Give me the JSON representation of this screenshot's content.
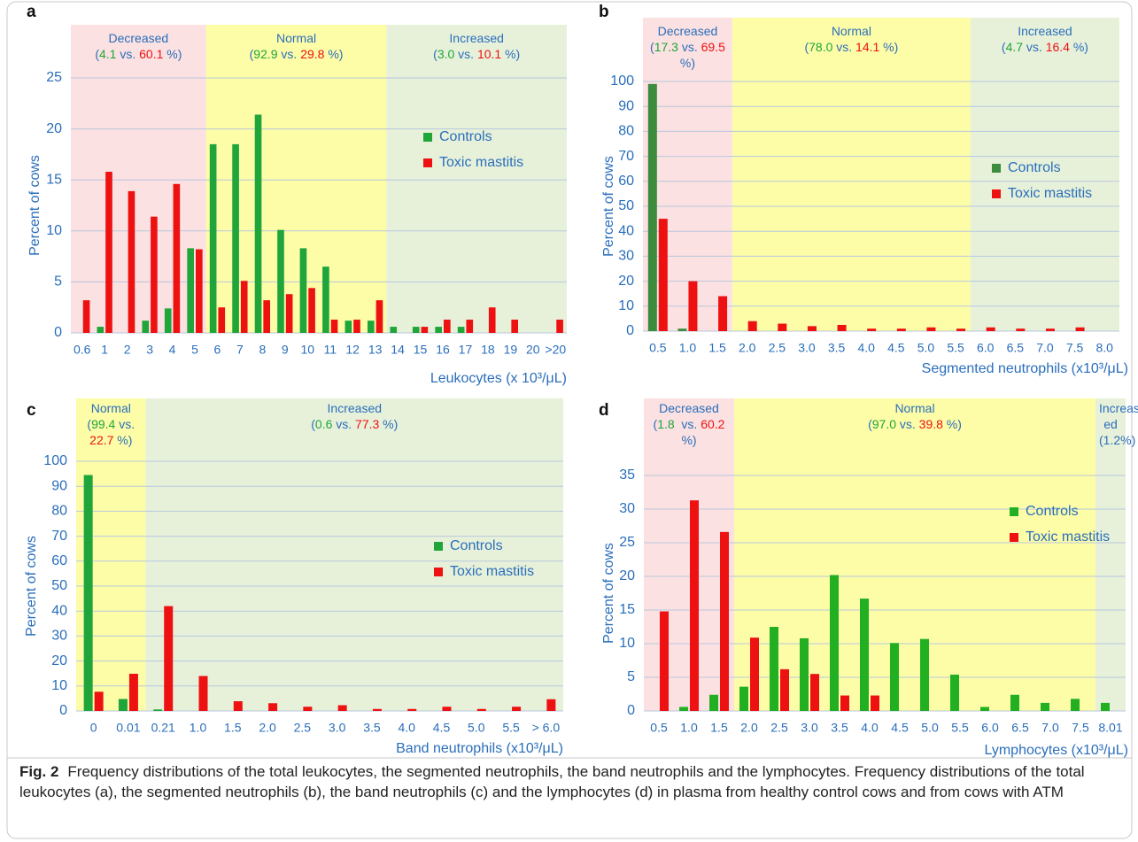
{
  "chart_data": [
    {
      "type": "bar",
      "panel": "a",
      "x_label": "Leukocytes (x 10³/μL)",
      "y_label": "Percent of cows",
      "categories": [
        "0.6",
        "1",
        "2",
        "3",
        "4",
        "5",
        "6",
        "7",
        "8",
        "9",
        "10",
        "11",
        "12",
        "13",
        "14",
        "15",
        "16",
        "17",
        "18",
        "19",
        "20",
        ">20"
      ],
      "series": [
        {
          "name": "Controls",
          "color": "#1fa53a",
          "values": [
            0,
            0.6,
            0,
            1.2,
            2.4,
            8.3,
            18.5,
            18.5,
            21.4,
            10.1,
            8.3,
            6.5,
            1.2,
            1.2,
            0.6,
            0.6,
            0.6,
            0.6,
            0,
            0,
            0,
            0
          ]
        },
        {
          "name": "Toxic mastitis",
          "color": "#ee1111",
          "values": [
            3.2,
            15.8,
            13.9,
            11.4,
            14.6,
            8.2,
            2.5,
            5.1,
            3.2,
            3.8,
            4.4,
            1.3,
            1.3,
            3.2,
            0,
            0.6,
            1.3,
            1.3,
            2.5,
            1.3,
            0,
            1.3
          ]
        }
      ],
      "ylim": [
        0,
        25
      ],
      "yticks": [
        0,
        5,
        10,
        15,
        20,
        25
      ],
      "grid": true,
      "zones": [
        {
          "label": "Decreased",
          "color": "#fbe1e1",
          "detail": [
            {
              "text": "(",
              "color": "#2a6ebb"
            },
            {
              "text": "4.1",
              "color": "#1fa53a"
            },
            {
              "text": " vs. ",
              "color": "#2a6ebb"
            },
            {
              "text": "60.1",
              "color": "#ee1111"
            },
            {
              "text": " %)",
              "color": "#2a6ebb"
            }
          ]
        },
        {
          "label": "Normal",
          "color": "#fdfda8",
          "detail": [
            {
              "text": "(",
              "color": "#2a6ebb"
            },
            {
              "text": "92.9",
              "color": "#1fa53a"
            },
            {
              "text": " vs. ",
              "color": "#2a6ebb"
            },
            {
              "text": "29.8",
              "color": "#ee1111"
            },
            {
              "text": " %)",
              "color": "#2a6ebb"
            }
          ]
        },
        {
          "label": "Increased",
          "color": "#e7f1da",
          "detail": [
            {
              "text": "(",
              "color": "#2a6ebb"
            },
            {
              "text": "3.0",
              "color": "#1fa53a"
            },
            {
              "text": " vs. ",
              "color": "#2a6ebb"
            },
            {
              "text": "10.1",
              "color": "#ee1111"
            },
            {
              "text": " %)",
              "color": "#2a6ebb"
            }
          ]
        }
      ]
    },
    {
      "type": "bar",
      "panel": "b",
      "x_label": "Segmented neutrophils (x10³/μL)",
      "y_label": "Percent of cows",
      "categories": [
        "0.5",
        "1.0",
        "1.5",
        "2.0",
        "2.5",
        "3.0",
        "3.5",
        "4.0",
        "4.5",
        "5.0",
        "5.5",
        "6.0",
        "6.5",
        "7.0",
        "7.5",
        "8.0"
      ],
      "series": [
        {
          "name": "Controls",
          "color": "#3d8b3d",
          "values": [
            99,
            1,
            0,
            0,
            0,
            0,
            0,
            0,
            0,
            0,
            0,
            0,
            0,
            0,
            0,
            0
          ]
        },
        {
          "name": "Toxic mastitis",
          "color": "#ee1111",
          "values": [
            45,
            20,
            14,
            4,
            3,
            2,
            2.5,
            1,
            1,
            1.5,
            1,
            1.5,
            1,
            1,
            1.5,
            0
          ]
        }
      ],
      "ylim": [
        0,
        100
      ],
      "yticks": [
        0,
        10,
        20,
        30,
        40,
        50,
        60,
        70,
        80,
        90,
        100
      ],
      "grid": true,
      "zones": [
        {
          "label": "Decreased",
          "color": "#fbe1e1",
          "detail": [
            {
              "text": "(",
              "color": "#2a6ebb"
            },
            {
              "text": "17.3",
              "color": "#1fa53a"
            },
            {
              "text": " vs. ",
              "color": "#2a6ebb"
            },
            {
              "text": "69.5",
              "color": "#ee1111"
            },
            {
              "text": " %)",
              "color": "#2a6ebb"
            }
          ]
        },
        {
          "label": "Normal",
          "color": "#fdfda8",
          "detail": [
            {
              "text": "(",
              "color": "#2a6ebb"
            },
            {
              "text": "78.0",
              "color": "#1fa53a"
            },
            {
              "text": " vs. ",
              "color": "#2a6ebb"
            },
            {
              "text": "14.1",
              "color": "#ee1111"
            },
            {
              "text": " %)",
              "color": "#2a6ebb"
            }
          ]
        },
        {
          "label": "Increased",
          "color": "#e7f1da",
          "detail": [
            {
              "text": "(",
              "color": "#2a6ebb"
            },
            {
              "text": "4.7",
              "color": "#1fa53a"
            },
            {
              "text": " vs. ",
              "color": "#2a6ebb"
            },
            {
              "text": "16.4",
              "color": "#ee1111"
            },
            {
              "text": " %)",
              "color": "#2a6ebb"
            }
          ]
        }
      ]
    },
    {
      "type": "bar",
      "panel": "c",
      "x_label": "Band neutrophils (x10³/μL)",
      "y_label": "Percent of cows",
      "categories": [
        "0",
        "0.01",
        "0.21",
        "1.0",
        "1.5",
        "2.0",
        "2.5",
        "3.0",
        "3.5",
        "4.0",
        "4.5",
        "5.0",
        "5.5",
        "> 6.0"
      ],
      "series": [
        {
          "name": "Controls",
          "color": "#1fa53a",
          "values": [
            94.5,
            4.8,
            0.6,
            0,
            0,
            0,
            0,
            0,
            0,
            0,
            0,
            0,
            0,
            0
          ]
        },
        {
          "name": "Toxic mastitis",
          "color": "#ee1111",
          "values": [
            7.7,
            14.9,
            42.0,
            14.0,
            3.9,
            3.1,
            1.7,
            2.3,
            0.8,
            0.8,
            1.7,
            0.8,
            1.7,
            4.7
          ]
        }
      ],
      "ylim": [
        0,
        100
      ],
      "yticks": [
        0,
        10,
        20,
        30,
        40,
        50,
        60,
        70,
        80,
        90,
        100
      ],
      "grid": true,
      "zones": [
        {
          "label": "Normal",
          "color": "#fdfda8",
          "detail": [
            {
              "text": "(",
              "color": "#2a6ebb"
            },
            {
              "text": "99.4",
              "color": "#1fa53a"
            },
            {
              "text": " vs. ",
              "color": "#2a6ebb"
            },
            {
              "text": "22.7",
              "color": "#ee1111"
            },
            {
              "text": " %)",
              "color": "#2a6ebb"
            }
          ]
        },
        {
          "label": "Increased",
          "color": "#e7f1da",
          "detail": [
            {
              "text": "(",
              "color": "#2a6ebb"
            },
            {
              "text": "0.6",
              "color": "#1fa53a"
            },
            {
              "text": " vs. ",
              "color": "#2a6ebb"
            },
            {
              "text": "77.3",
              "color": "#ee1111"
            },
            {
              "text": " %)",
              "color": "#2a6ebb"
            }
          ]
        }
      ]
    },
    {
      "type": "bar",
      "panel": "d",
      "x_label": "Lymphocytes (x10³/μL)",
      "y_label": "Percent of cows",
      "categories": [
        "0.5",
        "1.0",
        "1.5",
        "2.0",
        "2.5",
        "3.0",
        "3.5",
        "4.0",
        "4.5",
        "5.0",
        "5.5",
        "6.0",
        "6.5",
        "7.0",
        "7.5",
        "8.01"
      ],
      "series": [
        {
          "name": "Controls",
          "color": "#22b022",
          "values": [
            0,
            0.6,
            2.4,
            3.6,
            12.5,
            10.8,
            20.2,
            16.7,
            10.1,
            10.7,
            5.4,
            0.6,
            2.4,
            1.2,
            1.8,
            1.2
          ]
        },
        {
          "name": "Toxic mastitis",
          "color": "#ee1111",
          "values": [
            14.8,
            31.3,
            26.6,
            10.9,
            6.2,
            5.5,
            2.3,
            2.3,
            0,
            0,
            0,
            0,
            0,
            0,
            0,
            0
          ]
        }
      ],
      "ylim": [
        0,
        35
      ],
      "yticks": [
        0,
        5,
        10,
        15,
        20,
        25,
        30,
        35
      ],
      "grid": true,
      "zones": [
        {
          "label": "Decreased",
          "color": "#fbe1e1",
          "detail": [
            {
              "text": "(",
              "color": "#2a6ebb"
            },
            {
              "text": "1.8",
              "color": "#1fa53a"
            },
            {
              "text": "  vs. ",
              "color": "#2a6ebb"
            },
            {
              "text": "60.2",
              "color": "#ee1111"
            },
            {
              "text": " %)",
              "color": "#2a6ebb"
            }
          ]
        },
        {
          "label": "Normal",
          "color": "#fdfda8",
          "detail": [
            {
              "text": "(",
              "color": "#2a6ebb"
            },
            {
              "text": "97.0",
              "color": "#1fa53a"
            },
            {
              "text": " vs. ",
              "color": "#2a6ebb"
            },
            {
              "text": "39.8",
              "color": "#ee1111"
            },
            {
              "text": " %)",
              "color": "#2a6ebb"
            }
          ]
        },
        {
          "label": "Increas-",
          "color": "#e7f1da",
          "detail": [
            {
              "text": "ed (1.2%)",
              "color": "#2a6ebb"
            }
          ]
        }
      ]
    }
  ],
  "caption": {
    "label": "Fig. 2",
    "text": "Frequency distributions of the total leukocytes, the segmented neutrophils, the band neutrophils and the lymphocytes. Frequency distributions of the total leukocytes (a), the segmented neutrophils (b), the band neutrophils (c) and the lymphocytes (d) in plasma from healthy control cows and from cows with ATM"
  }
}
